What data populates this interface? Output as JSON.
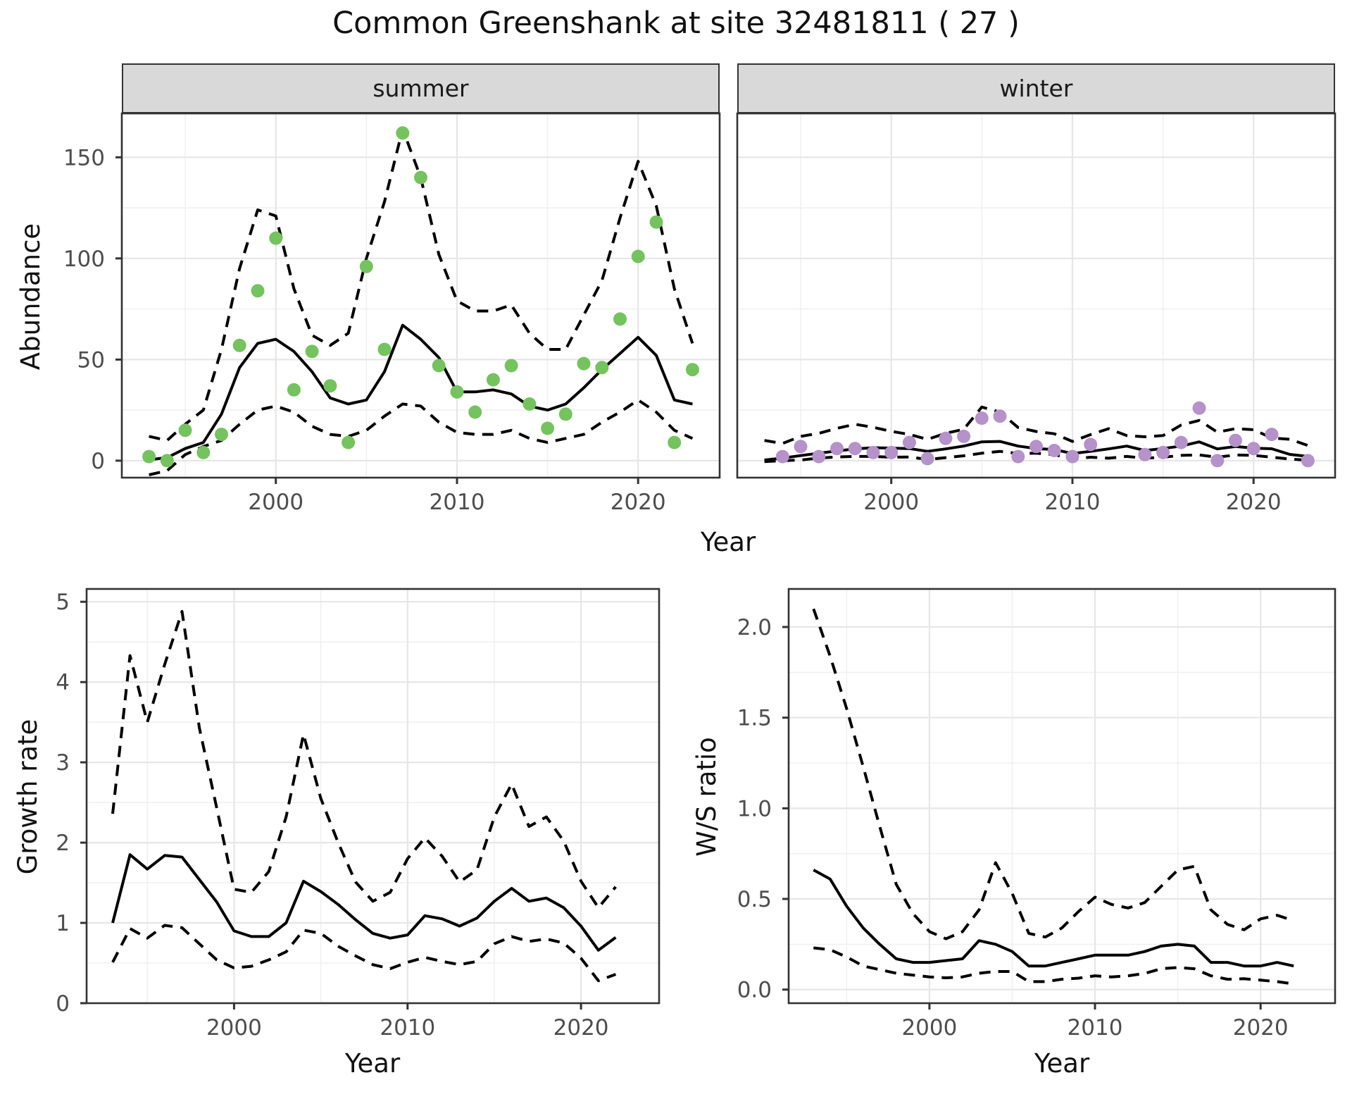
{
  "title": "Common Greenshank at site 32481811 ( 27 )",
  "labels": {
    "x_axis": "Year",
    "y_axis_abundance": "Abundance",
    "y_axis_growth": "Growth rate",
    "y_axis_ws": "W/S ratio",
    "facet_summer": "summer",
    "facet_winter": "winter"
  },
  "colors": {
    "summer_point": "#74c35e",
    "winter_point": "#b592c9",
    "line": "#000000",
    "grid_major": "#e6e6e6",
    "grid_minor": "#f0f0f0",
    "strip_fill": "#d9d9d9",
    "panel_border": "#333333",
    "tick_label": "#4d4d4d"
  },
  "chart_data": [
    {
      "id": "abundance-summer",
      "type": "line",
      "facet": "summer",
      "ylabel": "Abundance",
      "xlabel": "Year",
      "x": [
        1993,
        1994,
        1995,
        1996,
        1997,
        1998,
        1999,
        2000,
        2001,
        2002,
        2003,
        2004,
        2005,
        2006,
        2007,
        2008,
        2009,
        2010,
        2011,
        2012,
        2013,
        2014,
        2015,
        2016,
        2017,
        2018,
        2019,
        2020,
        2021,
        2022,
        2023
      ],
      "series": [
        {
          "name": "observed",
          "kind": "scatter",
          "color": "#74c35e",
          "values": [
            2,
            0,
            15,
            4,
            13,
            57,
            84,
            110,
            35,
            54,
            37,
            9,
            96,
            55,
            162,
            140,
            47,
            34,
            24,
            40,
            47,
            28,
            16,
            23,
            48,
            46,
            70,
            101,
            118,
            9,
            45
          ]
        },
        {
          "name": "mean",
          "kind": "line",
          "dashed": false,
          "values": [
            0.5,
            1.5,
            6,
            9,
            23,
            46,
            58,
            60,
            54,
            44,
            31,
            28,
            30,
            44,
            67,
            60,
            51,
            34,
            34,
            35,
            33,
            27,
            25,
            28,
            36,
            45,
            53,
            61,
            52,
            30,
            28
          ]
        },
        {
          "name": "upper_ci",
          "kind": "line",
          "dashed": true,
          "values": [
            12,
            10,
            18,
            25,
            55,
            95,
            124,
            121,
            85,
            62,
            57,
            63,
            100,
            128,
            164,
            140,
            102,
            79,
            74,
            74,
            77,
            63,
            55,
            55,
            72,
            89,
            120,
            148,
            126,
            85,
            58
          ]
        },
        {
          "name": "lower_ci",
          "kind": "line",
          "dashed": true,
          "values": [
            -7,
            -5,
            3,
            7,
            10,
            18,
            25,
            27,
            24,
            17,
            13,
            12,
            15,
            22,
            28,
            27,
            19,
            14,
            13,
            13,
            15,
            11,
            9,
            11,
            13,
            19,
            24,
            30,
            24,
            15,
            11
          ]
        }
      ],
      "xlim": [
        1991.5,
        2024.5
      ],
      "ylim": [
        -8.4,
        171.7
      ],
      "xticks": [
        2000,
        2010,
        2020
      ],
      "xminor": [
        1995,
        2005,
        2015
      ],
      "yticks": [
        0,
        50,
        100,
        150
      ],
      "ytick_labels": [
        "0",
        "50",
        "100",
        "150"
      ],
      "yminor": [
        25,
        75,
        125
      ]
    },
    {
      "id": "abundance-winter",
      "type": "line",
      "facet": "winter",
      "ylabel": "Abundance",
      "xlabel": "Year",
      "x": [
        1993,
        1994,
        1995,
        1996,
        1997,
        1998,
        1999,
        2000,
        2001,
        2002,
        2003,
        2004,
        2005,
        2006,
        2007,
        2008,
        2009,
        2010,
        2011,
        2012,
        2013,
        2014,
        2015,
        2016,
        2017,
        2018,
        2019,
        2020,
        2021,
        2022,
        2023
      ],
      "series": [
        {
          "name": "observed",
          "kind": "scatter",
          "color": "#b592c9",
          "values": [
            null,
            2,
            7,
            2,
            6,
            6,
            4,
            4,
            9,
            1,
            11,
            12,
            21,
            22,
            2,
            7,
            5,
            2,
            8,
            null,
            null,
            3,
            4,
            9,
            26,
            0,
            10,
            6,
            13,
            null,
            0
          ]
        },
        {
          "name": "mean",
          "kind": "line",
          "dashed": false,
          "values": [
            0.3,
            1.3,
            2.5,
            3.7,
            4.8,
            5.8,
            6.4,
            6.2,
            6.0,
            4.6,
            5.8,
            7.2,
            9.3,
            9.5,
            7.2,
            6.0,
            5.5,
            3.5,
            4.6,
            5.8,
            7.2,
            5.0,
            6.0,
            7.2,
            9.3,
            5.8,
            7.0,
            6.2,
            5.9,
            3.1,
            2.1
          ]
        },
        {
          "name": "upper_ci",
          "kind": "line",
          "dashed": true,
          "values": [
            10,
            8.5,
            12,
            13.5,
            16,
            18,
            16.5,
            14.5,
            13,
            10.5,
            13.5,
            15.5,
            26.5,
            24,
            16.4,
            14.4,
            13.3,
            9.5,
            12.9,
            15.8,
            12.4,
            11.8,
            12.4,
            17.6,
            19.9,
            14.1,
            15.8,
            15.3,
            11.2,
            10.6,
            7.5
          ]
        },
        {
          "name": "lower_ci",
          "kind": "line",
          "dashed": true,
          "values": [
            -0.5,
            0,
            0.3,
            1.3,
            1.8,
            2.1,
            2.1,
            1.7,
            1.8,
            0.6,
            1.5,
            2.4,
            3.7,
            4.6,
            3.5,
            3.7,
            3.0,
            0.8,
            1.7,
            1.2,
            2.1,
            1.2,
            1.7,
            2.6,
            2.8,
            1.7,
            2.8,
            2.6,
            1.7,
            0.8,
            0.2
          ]
        }
      ],
      "xlim": [
        1991.5,
        2024.5
      ],
      "ylim": [
        -8.4,
        171.7
      ],
      "xticks": [
        2000,
        2010,
        2020
      ],
      "xminor": [
        1995,
        2005,
        2015
      ],
      "yticks": [
        0,
        50,
        100,
        150
      ],
      "ytick_labels": [
        "0",
        "50",
        "100",
        "150"
      ],
      "yminor": [
        25,
        75,
        125
      ]
    },
    {
      "id": "growth-rate",
      "type": "line",
      "facet": null,
      "ylabel": "Growth rate",
      "xlabel": "Year",
      "x": [
        1993,
        1994,
        1995,
        1996,
        1997,
        1998,
        1999,
        2000,
        2001,
        2002,
        2003,
        2004,
        2005,
        2006,
        2007,
        2008,
        2009,
        2010,
        2011,
        2012,
        2013,
        2014,
        2015,
        2016,
        2017,
        2018,
        2019,
        2020,
        2021,
        2022
      ],
      "series": [
        {
          "name": "mean",
          "kind": "line",
          "dashed": false,
          "values": [
            1.0,
            1.85,
            1.67,
            1.84,
            1.82,
            1.54,
            1.26,
            0.9,
            0.83,
            0.83,
            1.0,
            1.52,
            1.39,
            1.23,
            1.04,
            0.87,
            0.81,
            0.85,
            1.09,
            1.05,
            0.96,
            1.06,
            1.27,
            1.43,
            1.27,
            1.31,
            1.19,
            0.96,
            0.66,
            0.82
          ]
        },
        {
          "name": "upper_ci",
          "kind": "line",
          "dashed": true,
          "values": [
            2.36,
            4.33,
            3.5,
            4.22,
            4.88,
            3.43,
            2.43,
            1.42,
            1.38,
            1.64,
            2.32,
            3.35,
            2.55,
            2.0,
            1.51,
            1.27,
            1.38,
            1.8,
            2.06,
            1.83,
            1.51,
            1.66,
            2.32,
            2.73,
            2.2,
            2.32,
            2.02,
            1.52,
            1.19,
            1.45
          ]
        },
        {
          "name": "lower_ci",
          "kind": "line",
          "dashed": true,
          "values": [
            0.51,
            0.93,
            0.81,
            0.97,
            0.94,
            0.74,
            0.54,
            0.44,
            0.46,
            0.54,
            0.64,
            0.91,
            0.87,
            0.71,
            0.59,
            0.48,
            0.43,
            0.51,
            0.57,
            0.52,
            0.48,
            0.52,
            0.74,
            0.83,
            0.77,
            0.8,
            0.75,
            0.56,
            0.28,
            0.36
          ]
        }
      ],
      "xlim": [
        1991.5,
        2024.5
      ],
      "ylim": [
        0,
        5.16
      ],
      "xticks": [
        2000,
        2010,
        2020
      ],
      "xminor": [
        1995,
        2005,
        2015
      ],
      "yticks": [
        0,
        1,
        2,
        3,
        4,
        5
      ],
      "ytick_labels": [
        "0",
        "1",
        "2",
        "3",
        "4",
        "5"
      ],
      "yminor": [
        0.5,
        1.5,
        2.5,
        3.5,
        4.5
      ]
    },
    {
      "id": "ws-ratio",
      "type": "line",
      "facet": null,
      "ylabel": "W/S ratio",
      "xlabel": "Year",
      "x": [
        1993,
        1994,
        1995,
        1996,
        1997,
        1998,
        1999,
        2000,
        2001,
        2002,
        2003,
        2004,
        2005,
        2006,
        2007,
        2008,
        2009,
        2010,
        2011,
        2012,
        2013,
        2014,
        2015,
        2016,
        2017,
        2018,
        2019,
        2020,
        2021,
        2022
      ],
      "series": [
        {
          "name": "mean",
          "kind": "line",
          "dashed": false,
          "values": [
            0.66,
            0.61,
            0.46,
            0.34,
            0.25,
            0.17,
            0.15,
            0.15,
            0.16,
            0.17,
            0.27,
            0.25,
            0.21,
            0.13,
            0.13,
            0.15,
            0.17,
            0.19,
            0.19,
            0.19,
            0.21,
            0.24,
            0.25,
            0.24,
            0.15,
            0.15,
            0.13,
            0.13,
            0.15,
            0.13
          ]
        },
        {
          "name": "upper_ci",
          "kind": "line",
          "dashed": true,
          "values": [
            2.1,
            1.84,
            1.55,
            1.23,
            0.9,
            0.58,
            0.42,
            0.32,
            0.28,
            0.32,
            0.44,
            0.7,
            0.53,
            0.31,
            0.29,
            0.34,
            0.43,
            0.51,
            0.47,
            0.45,
            0.48,
            0.57,
            0.66,
            0.68,
            0.44,
            0.36,
            0.33,
            0.39,
            0.41,
            0.38
          ]
        },
        {
          "name": "lower_ci",
          "kind": "line",
          "dashed": true,
          "values": [
            0.23,
            0.22,
            0.18,
            0.13,
            0.11,
            0.09,
            0.08,
            0.07,
            0.065,
            0.07,
            0.09,
            0.1,
            0.1,
            0.044,
            0.044,
            0.057,
            0.063,
            0.076,
            0.07,
            0.076,
            0.089,
            0.115,
            0.122,
            0.115,
            0.076,
            0.057,
            0.06,
            0.052,
            0.044,
            0.031
          ]
        }
      ],
      "xlim": [
        1991.5,
        2024.5
      ],
      "ylim": [
        -0.075,
        2.21
      ],
      "xticks": [
        2000,
        2010,
        2020
      ],
      "xminor": [
        1995,
        2005,
        2015
      ],
      "yticks": [
        0,
        0.5,
        1.0,
        1.5,
        2.0
      ],
      "ytick_labels": [
        "0.0",
        "0.5",
        "1.0",
        "1.5",
        "2.0"
      ],
      "yminor": [
        0.25,
        0.75,
        1.25,
        1.75
      ]
    }
  ]
}
